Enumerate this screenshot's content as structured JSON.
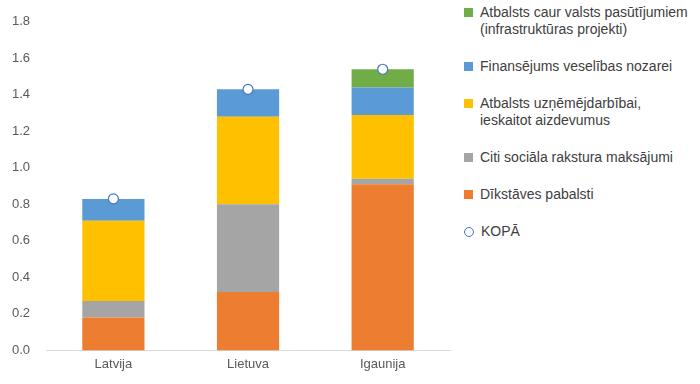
{
  "chart_data": {
    "type": "bar",
    "stacked": true,
    "grid": false,
    "legend": "right",
    "categories": [
      "Latvija",
      "Lietuva",
      "Igaunija"
    ],
    "ylim": [
      0,
      1.8
    ],
    "yticks": [
      {
        "value": 0,
        "label": "0.0"
      },
      0.2,
      0.4,
      0.6,
      0.8,
      {
        "value": 1,
        "label": "1.0"
      },
      1.2,
      1.4,
      1.6,
      1.8
    ],
    "series": [
      {
        "name": "Dīkstāves pabalsti",
        "type": "bar",
        "color": "#ed7d31",
        "values": [
          0.18,
          0.32,
          0.91
        ]
      },
      {
        "name": "Citi sociāla rakstura maksājumi",
        "type": "bar",
        "color": "#a5a5a5",
        "values": [
          0.09,
          0.48,
          0.03
        ]
      },
      {
        "name": "Atbalsts uzņēmējdarbībai, ieskaitot aizdevumus",
        "type": "bar",
        "color": "#ffc000",
        "values": [
          0.44,
          0.48,
          0.35
        ]
      },
      {
        "name": "Finansējums veselības nozarei",
        "type": "bar",
        "color": "#5b9bd5",
        "values": [
          0.12,
          0.15,
          0.15
        ]
      },
      {
        "name": "Atbalsts caur valsts pasūtījumiem (infrastruktūras projekti)",
        "type": "bar",
        "color": "#70ad47",
        "values": [
          0,
          0,
          0.1
        ]
      },
      {
        "name": "KOPĀ",
        "type": "line",
        "marker": "circle",
        "line_style": "none",
        "color": "#4472c4",
        "values": [
          0.83,
          1.43,
          1.54
        ]
      }
    ]
  }
}
